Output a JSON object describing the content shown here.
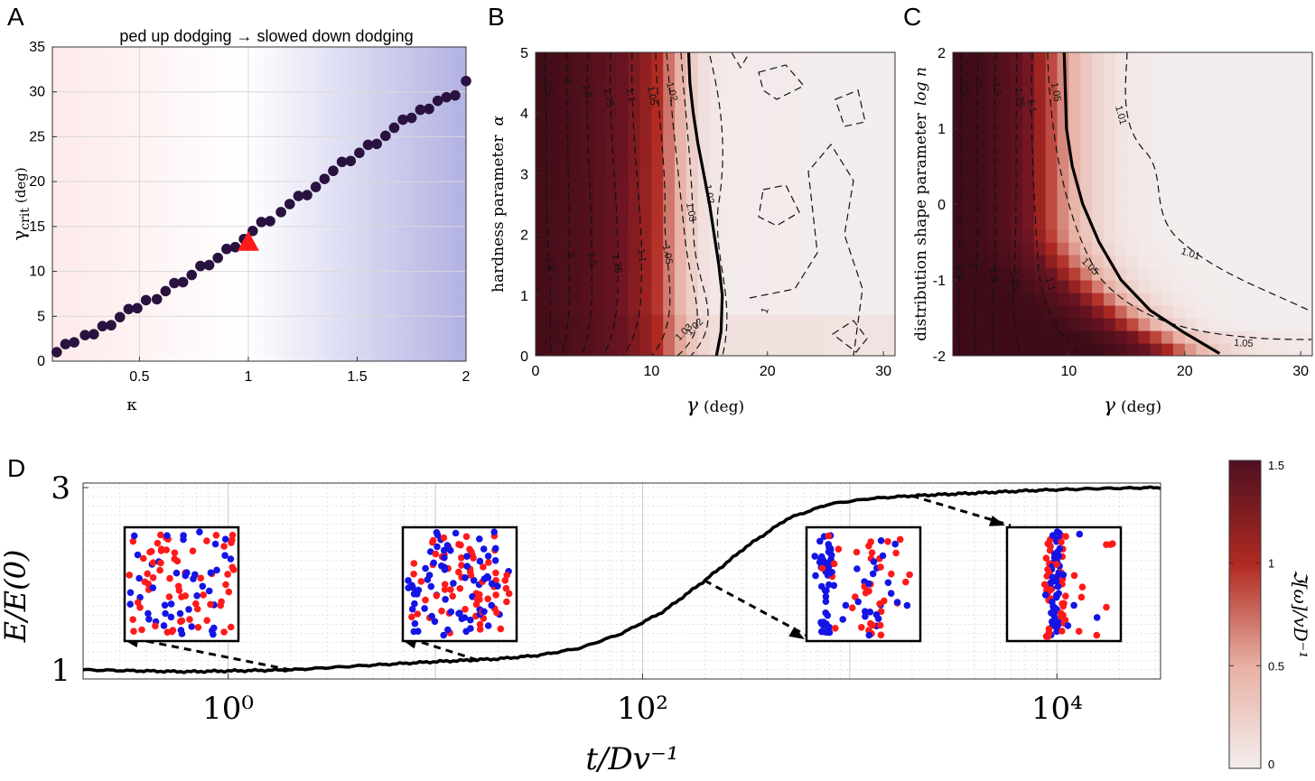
{
  "panel_letters": [
    "A",
    "B",
    "C",
    "D"
  ],
  "chart_data": [
    {
      "id": "A",
      "type": "scatter",
      "title": "ped up dodging → slowed down dodging",
      "xlabel": "κ",
      "ylabel_main": "γ",
      "ylabel_sub": "crit",
      "ylabel_unit": "(deg)",
      "xlim": [
        0.1,
        2.0
      ],
      "ylim": [
        0,
        35
      ],
      "xticks": [
        "0.5",
        "1",
        "1.5",
        "2"
      ],
      "xtick_values": [
        0.5,
        1,
        1.5,
        2
      ],
      "yticks": [
        "0",
        "5",
        "10",
        "15",
        "20",
        "25",
        "30",
        "35"
      ],
      "ytick_values": [
        0,
        5,
        10,
        15,
        20,
        25,
        30,
        35
      ],
      "grid": true,
      "background_gradient": [
        "#fdeaea",
        "#ffffff",
        "#b4b4e4"
      ],
      "point_color": "#2a1240",
      "x": [
        0.12,
        0.16,
        0.2,
        0.25,
        0.29,
        0.33,
        0.37,
        0.41,
        0.45,
        0.49,
        0.53,
        0.58,
        0.62,
        0.66,
        0.7,
        0.74,
        0.78,
        0.82,
        0.86,
        0.9,
        0.94,
        0.98,
        1.02,
        1.06,
        1.1,
        1.15,
        1.19,
        1.23,
        1.27,
        1.31,
        1.35,
        1.39,
        1.43,
        1.47,
        1.51,
        1.55,
        1.59,
        1.63,
        1.67,
        1.71,
        1.75,
        1.79,
        1.83,
        1.87,
        1.91,
        1.95,
        2.0
      ],
      "y": [
        1.0,
        1.9,
        2.1,
        2.9,
        3.0,
        3.9,
        4.0,
        4.9,
        5.8,
        5.9,
        6.8,
        6.9,
        7.8,
        8.7,
        8.8,
        9.6,
        10.6,
        10.7,
        11.5,
        12.5,
        12.7,
        13.6,
        14.5,
        15.5,
        15.6,
        16.6,
        17.5,
        18.4,
        18.5,
        19.4,
        20.3,
        21.2,
        22.2,
        22.3,
        23.2,
        24.1,
        24.2,
        25.1,
        26.0,
        26.9,
        27.1,
        28.0,
        28.1,
        29.0,
        29.4,
        29.6,
        31.2
      ],
      "highlight": {
        "x": 1.0,
        "y": 13.2,
        "marker": "triangle",
        "color": "#ff1a1a"
      }
    },
    {
      "id": "B",
      "type": "heatmap",
      "xlabel_main": "γ",
      "xlabel_unit": "(deg)",
      "ylabel_main": "hardness parameter",
      "ylabel_symbol": "α",
      "xlim": [
        0,
        31
      ],
      "ylim": [
        0,
        5
      ],
      "xticks": [
        "0",
        "10",
        "20",
        "30"
      ],
      "xtick_values": [
        0,
        10,
        20,
        30
      ],
      "yticks": [
        "0",
        "1",
        "2",
        "3",
        "4",
        "5"
      ],
      "ytick_values": [
        0,
        1,
        2,
        3,
        4,
        5
      ],
      "color_levels_by_gamma": [
        [
          0,
          2.6
        ],
        [
          4,
          2.2
        ],
        [
          7,
          1.6
        ],
        [
          10,
          1.15
        ],
        [
          12,
          0.6
        ],
        [
          14,
          0.15
        ],
        [
          16,
          0.02
        ],
        [
          31,
          0.0
        ]
      ],
      "contour_labels": [
        "2.5",
        "2",
        "1.5",
        "1.25",
        "1.1",
        "1.05",
        "1.02",
        "1.03",
        "1.02",
        "1.05",
        "1.1",
        "1.25",
        "1.5",
        "2",
        "2.5",
        "1.03",
        "1.02",
        "1"
      ],
      "critical_line": {
        "gamma": [
          13.2,
          13.3,
          13.6,
          14.0,
          14.5,
          15.0,
          15.4,
          15.8,
          16.1,
          16.0,
          15.6
        ],
        "alpha": [
          5.0,
          4.5,
          4.0,
          3.5,
          3.0,
          2.5,
          2.0,
          1.5,
          1.0,
          0.4,
          0.0
        ]
      }
    },
    {
      "id": "C",
      "type": "heatmap",
      "xlabel_main": "γ",
      "xlabel_unit": "(deg)",
      "ylabel_main": "distribution shape parameter",
      "ylabel_symbol": "log n",
      "xlim": [
        0,
        31
      ],
      "ylim": [
        -2,
        2
      ],
      "xticks": [
        "10",
        "20",
        "30"
      ],
      "xtick_values": [
        10,
        20,
        30
      ],
      "yticks": [
        "2",
        "1",
        "0",
        "-1",
        "-2"
      ],
      "ytick_values": [
        2,
        1,
        0,
        -1,
        -2
      ],
      "contour_labels": [
        "2.5",
        "2",
        "1.5",
        "1.25",
        "1.1",
        "1.05",
        "1.01",
        "1.01",
        "1.05",
        "1.05",
        "1.1",
        "1.25",
        "1.5",
        "2",
        "2.5"
      ],
      "critical_line": {
        "gamma": [
          9.6,
          9.8,
          10.3,
          11.2,
          12.6,
          14.5,
          17.0,
          20.0,
          23.0
        ],
        "logn": [
          2.0,
          1.0,
          0.5,
          0.0,
          -0.5,
          -1.0,
          -1.4,
          -1.7,
          -1.97
        ]
      }
    },
    {
      "id": "D",
      "type": "line",
      "xlabel": "t/Dv⁻¹",
      "ylabel": "E/E(0)",
      "xscale": "log",
      "xlim_log10": [
        -0.7,
        4.5
      ],
      "ylim": [
        0.9,
        3.05
      ],
      "xticks": [
        "10⁰",
        "10²",
        "10⁴"
      ],
      "xtick_log10": [
        0,
        2,
        4
      ],
      "yticks": [
        "1",
        "3"
      ],
      "ytick_values": [
        1,
        3
      ],
      "grid": true,
      "curve_log10t": [
        -0.7,
        -0.2,
        0.3,
        0.6,
        1.0,
        1.3,
        1.5,
        1.7,
        1.9,
        2.1,
        2.3,
        2.5,
        2.7,
        2.9,
        3.1,
        3.3,
        3.6,
        3.9,
        4.2,
        4.5
      ],
      "curve_E": [
        1.0,
        0.98,
        1.0,
        1.04,
        1.09,
        1.12,
        1.16,
        1.24,
        1.4,
        1.64,
        1.98,
        2.35,
        2.66,
        2.82,
        2.88,
        2.91,
        2.94,
        2.97,
        2.99,
        3.0
      ],
      "inset_marks_at_log10t": [
        0.3,
        1.2,
        2.3,
        3.3
      ],
      "particle_colors": [
        "#ff1a1a",
        "#1414e6"
      ]
    },
    {
      "id": "colorbar",
      "type": "heatmap",
      "label": "ℑ[ω]/vD⁻¹",
      "ticks": [
        "0",
        "0.5",
        "1",
        "1.5"
      ],
      "tick_values": [
        0,
        0.5,
        1,
        1.5
      ],
      "range": [
        0,
        1.5
      ],
      "colors": [
        "#f2ecec",
        "#e9b3a6",
        "#ad2420",
        "#4f1020"
      ]
    }
  ]
}
